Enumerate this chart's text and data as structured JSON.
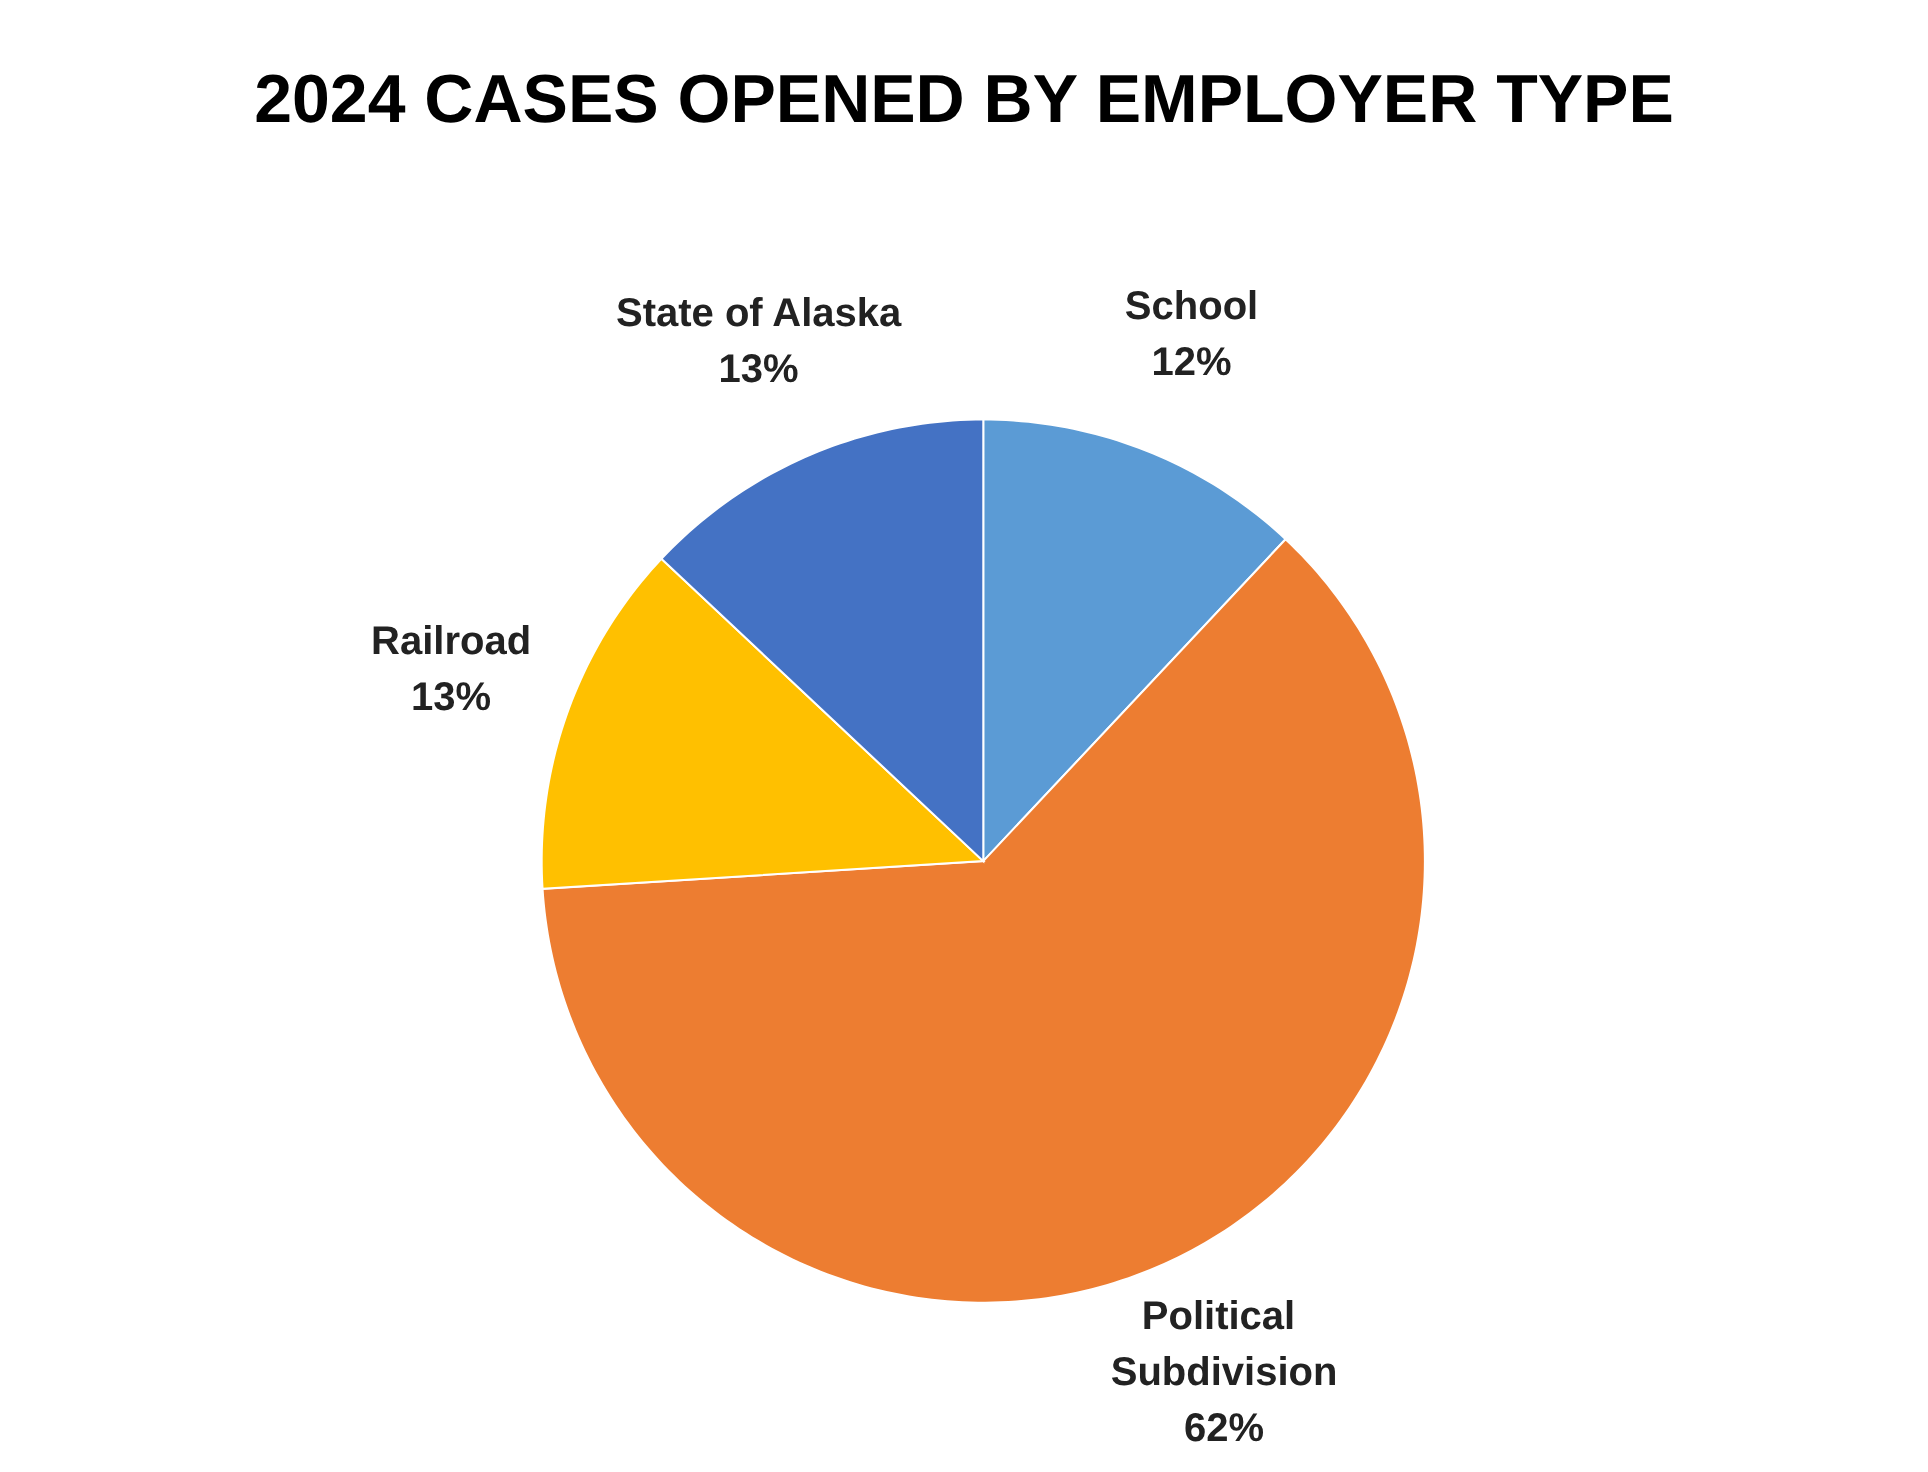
{
  "chart_data": {
    "type": "pie",
    "title": "2024 CASES OPENED BY EMPLOYER TYPE",
    "categories": [
      "School",
      "Political Subdivision",
      "Railroad",
      "State of Alaska"
    ],
    "values": [
      12,
      62,
      13,
      13
    ],
    "colors": [
      "#5b9bd5",
      "#ed7d31",
      "#ffc000",
      "#4472c4"
    ],
    "value_labels": [
      "12%",
      "62%",
      "13%",
      "13%"
    ]
  }
}
